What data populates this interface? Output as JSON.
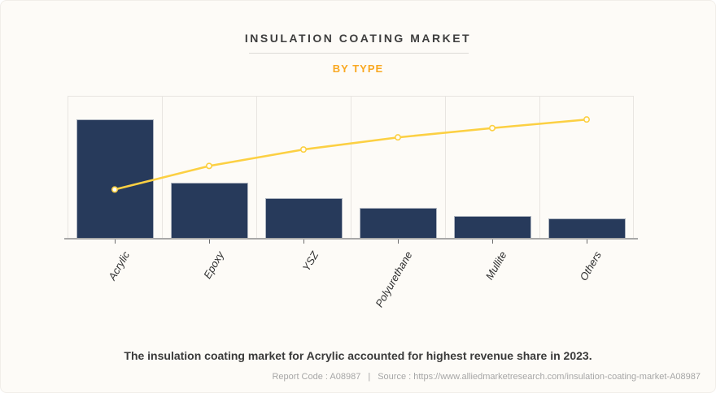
{
  "header": {
    "title": "INSULATION COATING MARKET",
    "subtitle": "BY TYPE"
  },
  "chart_data": {
    "type": "bar",
    "subtype": "pareto-combo (bars + cumulative line, no numeric axes shown)",
    "categories": [
      "Acrylic",
      "Epoxy",
      "YSZ",
      "Polyurethane",
      "Mullite",
      "Others"
    ],
    "series": [
      {
        "name": "revenue-share-bars",
        "type": "bar",
        "color": "#273A5B",
        "values": [
          84,
          40,
          29,
          22,
          16.5,
          15
        ]
      },
      {
        "name": "cumulative-trend-line",
        "type": "line",
        "color": "#FCD043",
        "marker": "open-circle",
        "values": [
          35,
          51.5,
          63,
          71.5,
          78,
          84
        ]
      }
    ],
    "title": "INSULATION COATING MARKET",
    "subtitle": "BY TYPE",
    "xlabel": "",
    "ylabel": "",
    "ylim": [
      0,
      100
    ],
    "y_axis_labels_visible": false,
    "x_label_rotation_deg": 60,
    "grid": "vertical gridlines only",
    "legend": "none",
    "units": "percent of plot height (chart shows no numeric scale)"
  },
  "colors": {
    "background": "#FDFBF7",
    "bar": "#273A5B",
    "bar_stroke": "#AEB4BF",
    "line": "#FCD043",
    "marker_fill": "#FFFDF6",
    "gridline": "#E8E5E1",
    "axis": "#A8A8A8",
    "subtitle_accent": "#F9A821"
  },
  "caption": {
    "text": "The insulation coating market for Acrylic accounted for highest revenue share in 2023."
  },
  "footer": {
    "report_code": "Report Code : A08987",
    "separator": "|",
    "source": "Source : https://www.alliedmarketresearch.com/insulation-coating-market-A08987"
  }
}
